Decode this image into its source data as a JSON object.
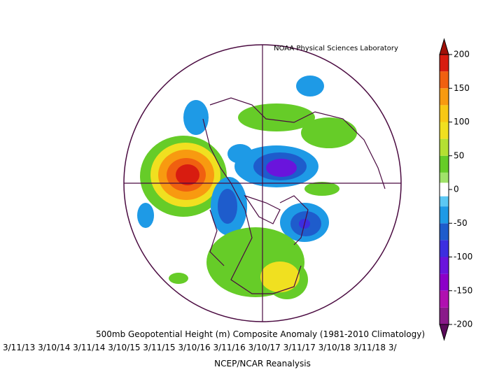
{
  "credit": "NOAA Physical Sciences Laboratory",
  "title": "500mb Geopotential Height (m) Composite Anomaly (1981-2010 Climatology)",
  "dates": "3/11/13 3/10/14 3/11/14 3/10/15 3/11/15 3/10/16 3/11/16 3/10/17 3/11/17 3/10/18 3/11/18 3/",
  "source": "NCEP/NCAR Reanalysis",
  "colorbar": {
    "lim": [
      -200,
      200
    ],
    "ticks": [
      200,
      150,
      100,
      50,
      0,
      -50,
      -100,
      -150,
      -200
    ],
    "levels": [
      -200,
      -175,
      -150,
      -125,
      -100,
      -75,
      -50,
      -25,
      -10,
      10,
      25,
      50,
      75,
      100,
      125,
      150,
      175,
      200
    ],
    "colors": [
      "#8a1a8a",
      "#b010b0",
      "#8c00c8",
      "#6a14dc",
      "#3c2ee0",
      "#1e5ccc",
      "#1e9ae6",
      "#5cc8f4",
      "#ffffff",
      "#a0e26a",
      "#66cc28",
      "#b4e032",
      "#f0e020",
      "#f8c814",
      "#f89a10",
      "#f06010",
      "#d81c10"
    ],
    "arrow_top_color": "#a01008",
    "arrow_bottom_color": "#5a0a5a"
  }
}
